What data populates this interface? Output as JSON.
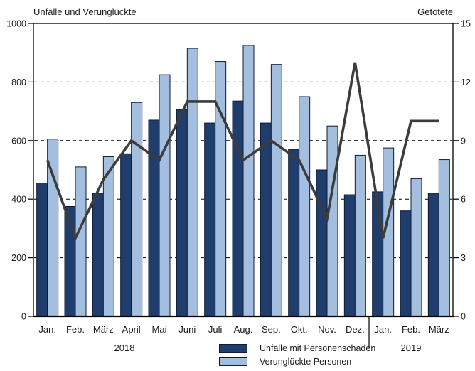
{
  "header": {
    "left_title": "Unfälle und Verunglückte",
    "right_title": "Getötete"
  },
  "colors": {
    "accidents_bar": "#1f3e6d",
    "casualties_bar": "#a3bede",
    "bar_border": "#111c33",
    "killed_line": "#3c3c3c",
    "grid_and_frame": "#000000",
    "text": "#1a1a1a",
    "background": "#ffffff"
  },
  "chart_data": {
    "type": "bar",
    "subtype": "grouped bars with overlaid line on secondary axis",
    "categories": [
      "Jan.",
      "Feb.",
      "März",
      "April",
      "Mai",
      "Juni",
      "Juli",
      "Aug.",
      "Sep.",
      "Okt.",
      "Nov.",
      "Dez.",
      "Jan.",
      "Feb.",
      "März"
    ],
    "year_groups": [
      {
        "label": "2018",
        "from": 0,
        "to": 11
      },
      {
        "label": "2019",
        "from": 12,
        "to": 14
      }
    ],
    "series": [
      {
        "name": "Unfälle mit Personenschaden",
        "type": "bar",
        "axis": "left",
        "color": "#1f3e6d",
        "values": [
          455,
          375,
          420,
          555,
          670,
          705,
          660,
          735,
          660,
          570,
          500,
          415,
          425,
          360,
          420
        ]
      },
      {
        "name": "Verunglückte Personen",
        "type": "bar",
        "axis": "left",
        "color": "#a3bede",
        "values": [
          605,
          510,
          545,
          730,
          825,
          915,
          870,
          925,
          860,
          750,
          650,
          550,
          575,
          470,
          535
        ]
      },
      {
        "name": "Getötete",
        "type": "line",
        "axis": "right",
        "color": "#3c3c3c",
        "values": [
          8,
          4,
          7,
          9,
          8,
          11,
          11,
          8,
          9,
          8,
          5,
          13,
          4,
          10,
          10
        ]
      }
    ],
    "left_axis": {
      "title": "Unfälle und Verunglückte",
      "min": 0,
      "max": 1000,
      "tick_step": 200,
      "ticks": [
        0,
        200,
        400,
        600,
        800,
        1000
      ]
    },
    "right_axis": {
      "title": "Getötete",
      "min": 0,
      "max": 15,
      "tick_step": 3,
      "ticks": [
        0,
        3,
        6,
        9,
        12,
        15
      ]
    },
    "grid": {
      "style": "dashed horizontal",
      "at_left_axis_values": [
        200,
        400,
        600,
        800
      ]
    },
    "frame": "full plot border, solid",
    "legend_position": "bottom center"
  }
}
